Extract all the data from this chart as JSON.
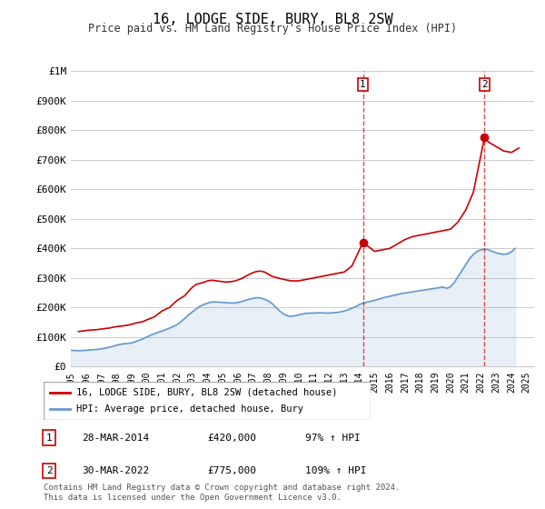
{
  "title": "16, LODGE SIDE, BURY, BL8 2SW",
  "subtitle": "Price paid vs. HM Land Registry's House Price Index (HPI)",
  "ylabel_top": "£1M",
  "legend_label1": "16, LODGE SIDE, BURY, BL8 2SW (detached house)",
  "legend_label2": "HPI: Average price, detached house, Bury",
  "footnote": "Contains HM Land Registry data © Crown copyright and database right 2024.\nThis data is licensed under the Open Government Licence v3.0.",
  "point1_label": "1",
  "point1_date": "28-MAR-2014",
  "point1_price": "£420,000",
  "point1_hpi": "97% ↑ HPI",
  "point1_year": 2014.23,
  "point1_value": 420000,
  "point2_label": "2",
  "point2_date": "30-MAR-2022",
  "point2_price": "£775,000",
  "point2_hpi": "109% ↑ HPI",
  "point2_year": 2022.23,
  "point2_value": 775000,
  "color_red": "#cc0000",
  "color_blue": "#6699cc",
  "color_dashed": "#cc0000",
  "color_grid": "#cccccc",
  "color_bg": "#ffffff",
  "ylim": [
    0,
    1000000
  ],
  "yticks": [
    0,
    100000,
    200000,
    300000,
    400000,
    500000,
    600000,
    700000,
    800000,
    900000,
    1000000
  ],
  "ytick_labels": [
    "£0",
    "£100K",
    "£200K",
    "£300K",
    "£400K",
    "£500K",
    "£600K",
    "£700K",
    "£800K",
    "£900K",
    "£1M"
  ],
  "xlim_start": 1995.0,
  "xlim_end": 2025.5,
  "hpi_years": [
    1995.0,
    1995.25,
    1995.5,
    1995.75,
    1996.0,
    1996.25,
    1996.5,
    1996.75,
    1997.0,
    1997.25,
    1997.5,
    1997.75,
    1998.0,
    1998.25,
    1998.5,
    1998.75,
    1999.0,
    1999.25,
    1999.5,
    1999.75,
    2000.0,
    2000.25,
    2000.5,
    2000.75,
    2001.0,
    2001.25,
    2001.5,
    2001.75,
    2002.0,
    2002.25,
    2002.5,
    2002.75,
    2003.0,
    2003.25,
    2003.5,
    2003.75,
    2004.0,
    2004.25,
    2004.5,
    2004.75,
    2005.0,
    2005.25,
    2005.5,
    2005.75,
    2006.0,
    2006.25,
    2006.5,
    2006.75,
    2007.0,
    2007.25,
    2007.5,
    2007.75,
    2008.0,
    2008.25,
    2008.5,
    2008.75,
    2009.0,
    2009.25,
    2009.5,
    2009.75,
    2010.0,
    2010.25,
    2010.5,
    2010.75,
    2011.0,
    2011.25,
    2011.5,
    2011.75,
    2012.0,
    2012.25,
    2012.5,
    2012.75,
    2013.0,
    2013.25,
    2013.5,
    2013.75,
    2014.0,
    2014.25,
    2014.5,
    2014.75,
    2015.0,
    2015.25,
    2015.5,
    2015.75,
    2016.0,
    2016.25,
    2016.5,
    2016.75,
    2017.0,
    2017.25,
    2017.5,
    2017.75,
    2018.0,
    2018.25,
    2018.5,
    2018.75,
    2019.0,
    2019.25,
    2019.5,
    2019.75,
    2020.0,
    2020.25,
    2020.5,
    2020.75,
    2021.0,
    2021.25,
    2021.5,
    2021.75,
    2022.0,
    2022.25,
    2022.5,
    2022.75,
    2023.0,
    2023.25,
    2023.5,
    2023.75,
    2024.0,
    2024.25
  ],
  "hpi_values": [
    55000,
    54000,
    53500,
    54000,
    55000,
    56000,
    57000,
    58000,
    60000,
    62000,
    65000,
    68000,
    72000,
    75000,
    77000,
    78000,
    80000,
    84000,
    89000,
    94000,
    100000,
    106000,
    111000,
    116000,
    120000,
    125000,
    130000,
    136000,
    142000,
    152000,
    163000,
    175000,
    185000,
    195000,
    204000,
    210000,
    215000,
    218000,
    219000,
    218000,
    217000,
    216000,
    215000,
    215000,
    217000,
    220000,
    224000,
    228000,
    231000,
    233000,
    232000,
    228000,
    222000,
    213000,
    200000,
    188000,
    178000,
    172000,
    170000,
    172000,
    175000,
    178000,
    180000,
    181000,
    181000,
    182000,
    182000,
    181000,
    181000,
    182000,
    183000,
    185000,
    188000,
    192000,
    197000,
    203000,
    210000,
    215000,
    218000,
    221000,
    224000,
    228000,
    232000,
    235000,
    238000,
    241000,
    244000,
    247000,
    249000,
    251000,
    253000,
    255000,
    257000,
    259000,
    261000,
    263000,
    265000,
    267000,
    269000,
    265000,
    270000,
    285000,
    305000,
    325000,
    345000,
    365000,
    380000,
    390000,
    395000,
    398000,
    395000,
    390000,
    385000,
    382000,
    380000,
    382000,
    388000,
    400000
  ],
  "prop_years": [
    1995.5,
    1996.0,
    1996.75,
    1997.5,
    1998.0,
    1998.5,
    1998.75,
    1999.0,
    1999.25,
    1999.75,
    2000.0,
    2000.5,
    2000.75,
    2001.0,
    2001.5,
    2001.75,
    2002.0,
    2002.5,
    2002.75,
    2003.0,
    2003.25,
    2003.75,
    2004.0,
    2004.25,
    2004.5,
    2004.75,
    2005.0,
    2005.25,
    2005.5,
    2005.75,
    2006.0,
    2006.25,
    2006.5,
    2006.75,
    2007.0,
    2007.25,
    2007.5,
    2007.75,
    2008.0,
    2008.25,
    2009.0,
    2009.5,
    2010.0,
    2010.5,
    2011.0,
    2011.5,
    2012.0,
    2012.5,
    2013.0,
    2013.5,
    2014.23,
    2015.0,
    2015.5,
    2016.0,
    2016.5,
    2017.0,
    2017.5,
    2018.0,
    2018.5,
    2019.0,
    2019.5,
    2020.0,
    2020.5,
    2021.0,
    2021.5,
    2022.23,
    2022.5,
    2023.0,
    2023.5,
    2024.0,
    2024.5
  ],
  "prop_values": [
    118000,
    122000,
    125000,
    130000,
    135000,
    138000,
    140000,
    143000,
    147000,
    152000,
    158000,
    168000,
    178000,
    188000,
    200000,
    212000,
    224000,
    240000,
    255000,
    268000,
    278000,
    285000,
    290000,
    292000,
    291000,
    289000,
    287000,
    286000,
    287000,
    289000,
    293000,
    298000,
    305000,
    312000,
    318000,
    322000,
    323000,
    320000,
    313000,
    305000,
    295000,
    290000,
    290000,
    295000,
    300000,
    305000,
    310000,
    315000,
    320000,
    340000,
    420000,
    390000,
    395000,
    400000,
    415000,
    430000,
    440000,
    445000,
    450000,
    455000,
    460000,
    465000,
    490000,
    530000,
    590000,
    775000,
    760000,
    745000,
    730000,
    725000,
    740000
  ],
  "xtick_years": [
    1995,
    1996,
    1997,
    1998,
    1999,
    2000,
    2001,
    2002,
    2003,
    2004,
    2005,
    2006,
    2007,
    2008,
    2009,
    2010,
    2011,
    2012,
    2013,
    2014,
    2015,
    2016,
    2017,
    2018,
    2019,
    2020,
    2021,
    2022,
    2023,
    2024,
    2025
  ]
}
